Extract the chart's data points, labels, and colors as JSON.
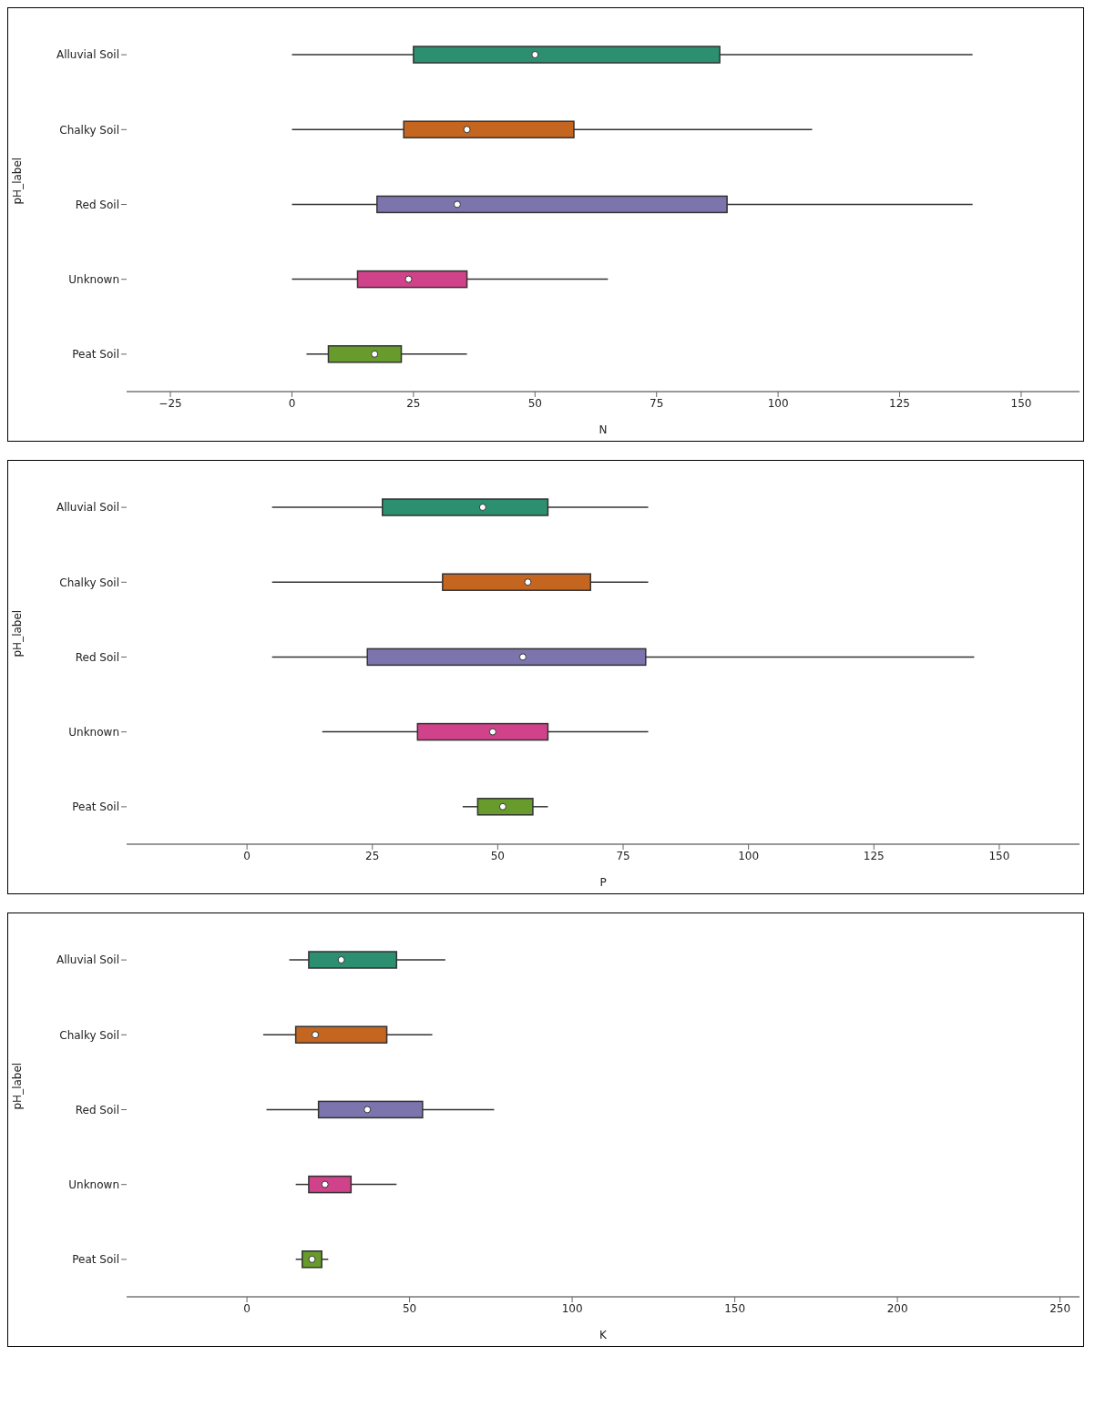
{
  "chart_data": [
    {
      "type": "box",
      "orientation": "horizontal",
      "xlabel": "N",
      "ylabel": "pH_label",
      "categories": [
        "Alluvial Soil",
        "Chalky Soil",
        "Red Soil",
        "Unknown",
        "Peat Soil"
      ],
      "colors": [
        "#2b8f70",
        "#c4661f",
        "#7c74ad",
        "#d0428a",
        "#679b2b"
      ],
      "xlim": [
        -34,
        162
      ],
      "xticks": [
        {
          "value": -25,
          "label": "−25"
        },
        0,
        25,
        50,
        75,
        100,
        125,
        150
      ],
      "boxes": [
        {
          "low": 0,
          "q1": 25,
          "median": 50,
          "q3": 88,
          "high": 140
        },
        {
          "low": 0,
          "q1": 23,
          "median": 36,
          "q3": 58,
          "high": 107
        },
        {
          "low": 0,
          "q1": 17.5,
          "median": 34,
          "q3": 89.5,
          "high": 140
        },
        {
          "low": 0,
          "q1": 13.5,
          "median": 24,
          "q3": 36,
          "high": 65
        },
        {
          "low": 3,
          "q1": 7.5,
          "median": 17,
          "q3": 22.5,
          "high": 36
        }
      ]
    },
    {
      "type": "box",
      "orientation": "horizontal",
      "xlabel": "P",
      "ylabel": "pH_label",
      "categories": [
        "Alluvial Soil",
        "Chalky Soil",
        "Red Soil",
        "Unknown",
        "Peat Soil"
      ],
      "colors": [
        "#2b8f70",
        "#c4661f",
        "#7c74ad",
        "#d0428a",
        "#679b2b"
      ],
      "xlim": [
        -24,
        166
      ],
      "xticks": [
        0,
        25,
        50,
        75,
        100,
        125,
        150
      ],
      "boxes": [
        {
          "low": 5,
          "q1": 27,
          "median": 47,
          "q3": 60,
          "high": 80
        },
        {
          "low": 5,
          "q1": 39,
          "median": 56,
          "q3": 68.5,
          "high": 80
        },
        {
          "low": 5,
          "q1": 24,
          "median": 55,
          "q3": 79.5,
          "high": 145
        },
        {
          "low": 15,
          "q1": 34,
          "median": 49,
          "q3": 60,
          "high": 80
        },
        {
          "low": 43,
          "q1": 46,
          "median": 51,
          "q3": 57,
          "high": 60
        }
      ]
    },
    {
      "type": "box",
      "orientation": "horizontal",
      "xlabel": "K",
      "ylabel": "pH_label",
      "categories": [
        "Alluvial Soil",
        "Chalky Soil",
        "Red Soil",
        "Unknown",
        "Peat Soil"
      ],
      "colors": [
        "#2b8f70",
        "#c4661f",
        "#7c74ad",
        "#d0428a",
        "#679b2b"
      ],
      "xlim": [
        -37,
        256
      ],
      "xticks": [
        0,
        50,
        100,
        150,
        200,
        250
      ],
      "boxes": [
        {
          "low": 13,
          "q1": 19,
          "median": 29,
          "q3": 46,
          "high": 61
        },
        {
          "low": 5,
          "q1": 15,
          "median": 21,
          "q3": 43,
          "high": 57
        },
        {
          "low": 6,
          "q1": 22,
          "median": 37,
          "q3": 54,
          "high": 76
        },
        {
          "low": 15,
          "q1": 19,
          "median": 24,
          "q3": 32,
          "high": 46
        },
        {
          "low": 15,
          "q1": 17,
          "median": 20,
          "q3": 23,
          "high": 25
        }
      ]
    }
  ]
}
